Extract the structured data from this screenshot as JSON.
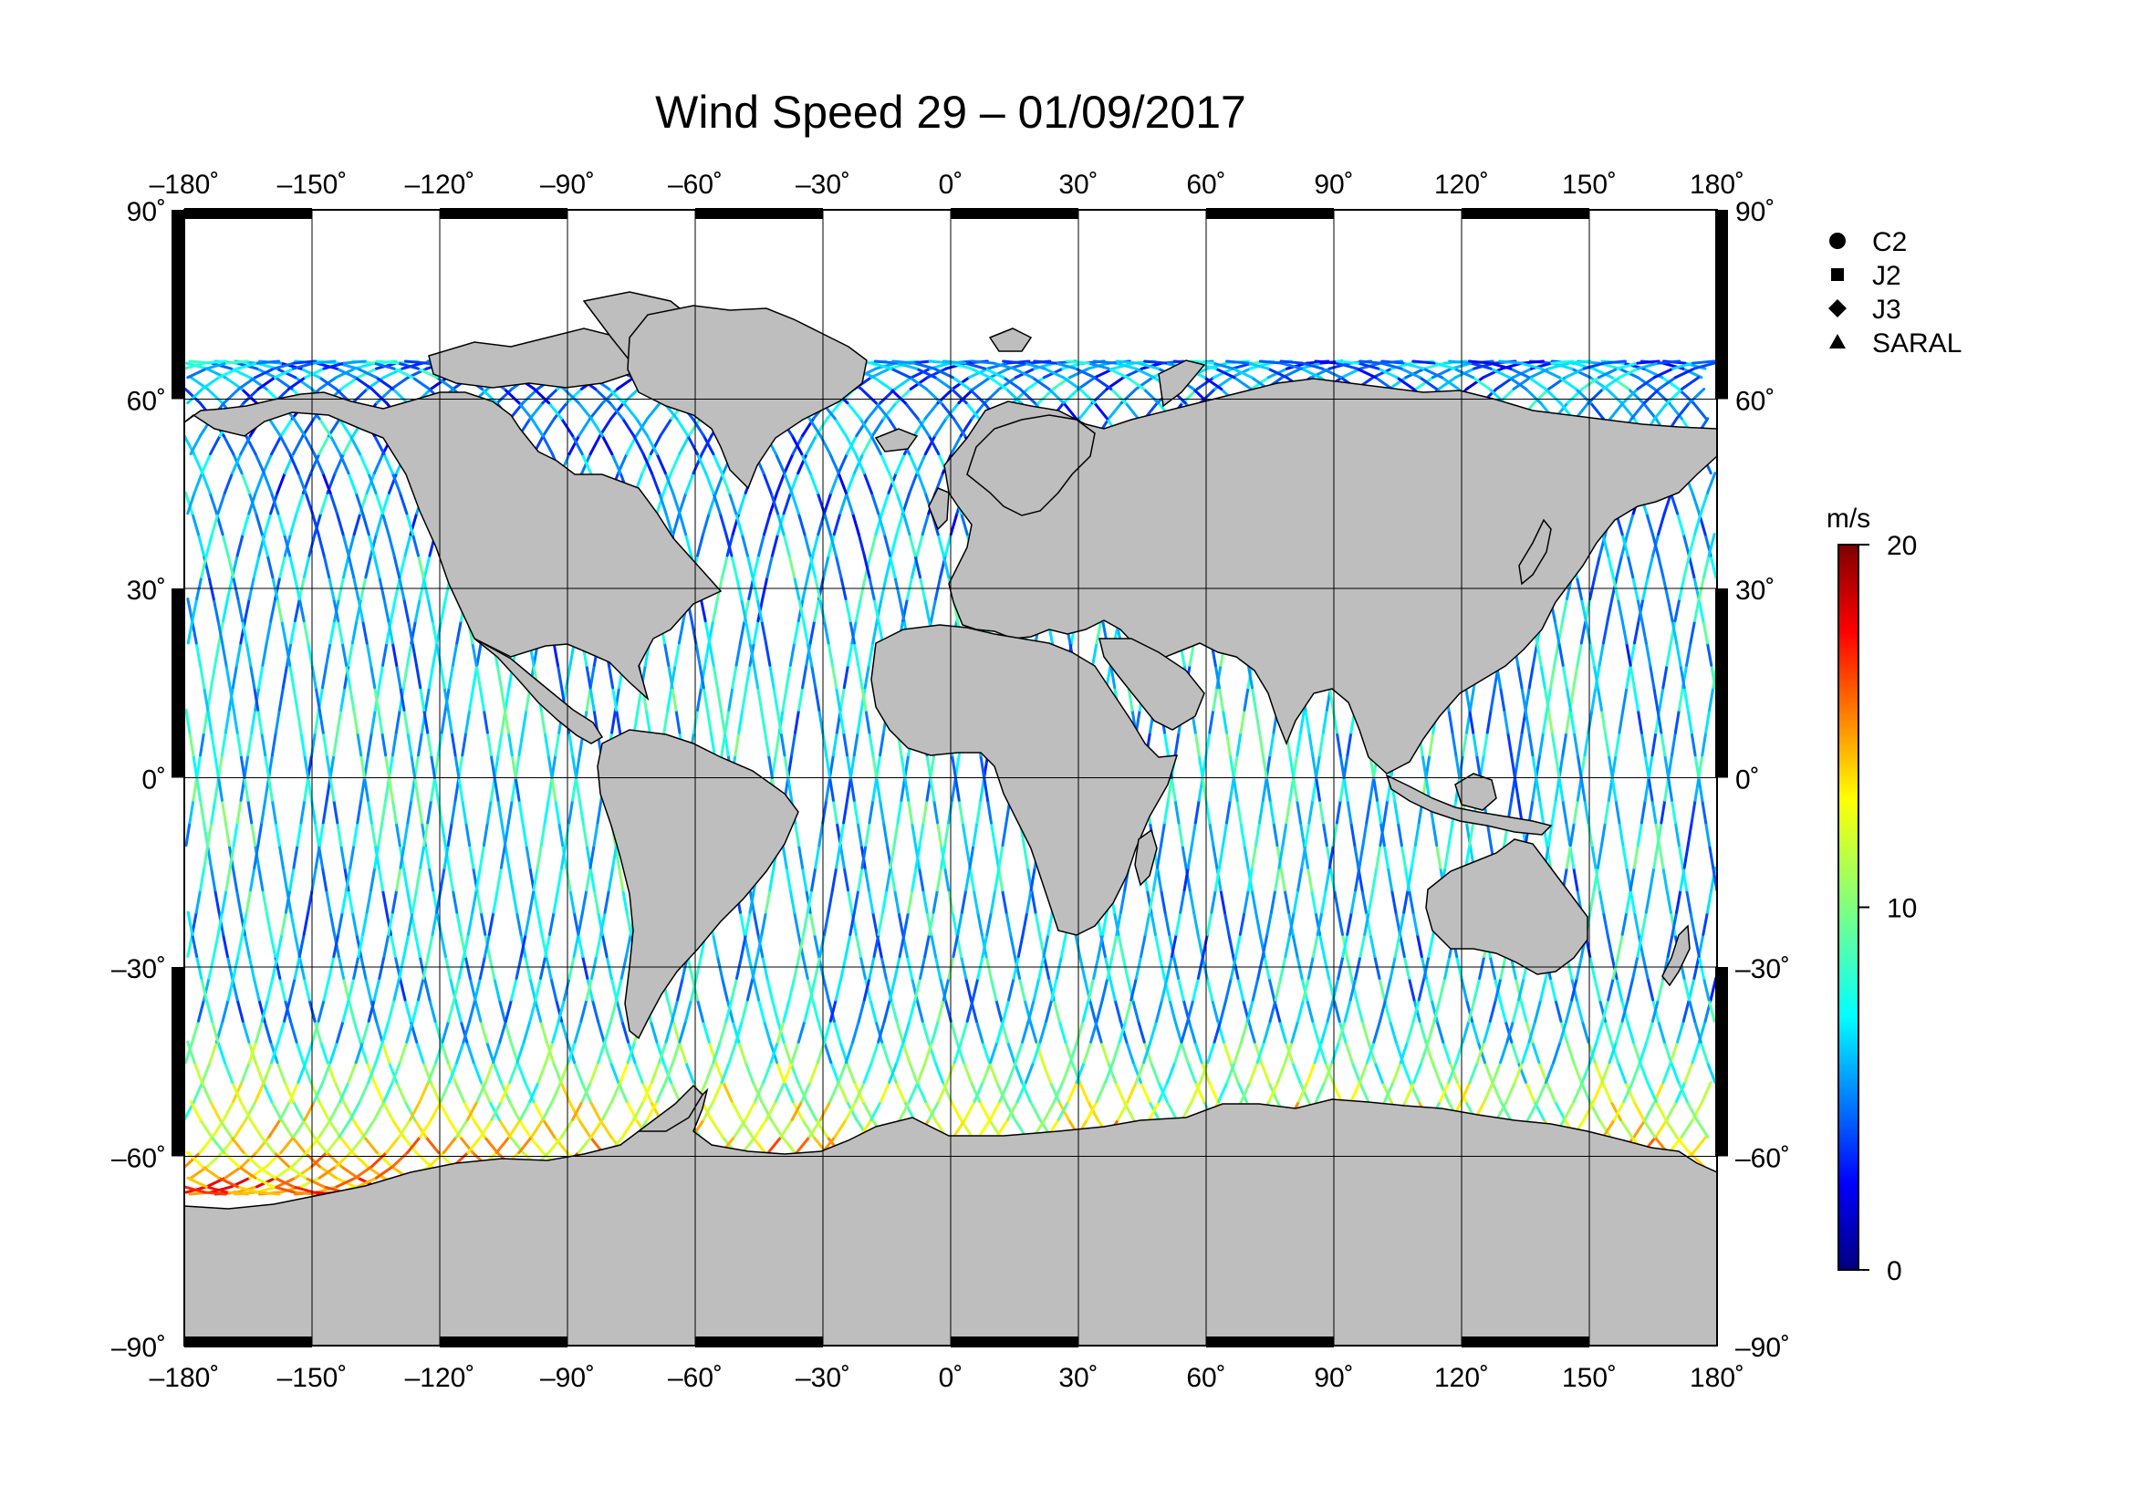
{
  "title": "Wind Speed 29 – 01/09/2017",
  "lon_ticks": [
    {
      "value": -180,
      "label": "–180˚"
    },
    {
      "value": -150,
      "label": "–150˚"
    },
    {
      "value": -120,
      "label": "–120˚"
    },
    {
      "value": -90,
      "label": "–90˚"
    },
    {
      "value": -60,
      "label": "–60˚"
    },
    {
      "value": -30,
      "label": "–30˚"
    },
    {
      "value": 0,
      "label": "0˚"
    },
    {
      "value": 30,
      "label": "30˚"
    },
    {
      "value": 60,
      "label": "60˚"
    },
    {
      "value": 90,
      "label": "90˚"
    },
    {
      "value": 120,
      "label": "120˚"
    },
    {
      "value": 150,
      "label": "150˚"
    },
    {
      "value": 180,
      "label": "180˚"
    }
  ],
  "lat_ticks": [
    {
      "value": 90,
      "label": "90˚"
    },
    {
      "value": 60,
      "label": "60˚"
    },
    {
      "value": 30,
      "label": "30˚"
    },
    {
      "value": 0,
      "label": "0˚"
    },
    {
      "value": -30,
      "label": "–30˚"
    },
    {
      "value": -60,
      "label": "–60˚"
    },
    {
      "value": -90,
      "label": "–90˚"
    }
  ],
  "legend": [
    {
      "label": "C2",
      "marker": "circle"
    },
    {
      "label": "J2",
      "marker": "square"
    },
    {
      "label": "J3",
      "marker": "diamond"
    },
    {
      "label": "SARAL",
      "marker": "triangle"
    }
  ],
  "colorbar": {
    "unit": "m/s",
    "min": 0,
    "max": 20,
    "ticks": [
      {
        "value": 20,
        "label": "20"
      },
      {
        "value": 10,
        "label": "10"
      },
      {
        "value": 0,
        "label": "0"
      }
    ]
  },
  "colors": {
    "land": "#bebebe",
    "coast": "#000000",
    "ocean": "#ffffff",
    "grid": "#000000"
  },
  "chart_data": {
    "type": "scatter",
    "xlim": [
      -180,
      180
    ],
    "ylim": [
      -90,
      90
    ],
    "grid": true,
    "series": [
      {
        "name": "C2",
        "marker": "circle"
      },
      {
        "name": "J2",
        "marker": "square"
      },
      {
        "name": "J3",
        "marker": "diamond"
      },
      {
        "name": "SARAL",
        "marker": "triangle"
      }
    ]
  }
}
